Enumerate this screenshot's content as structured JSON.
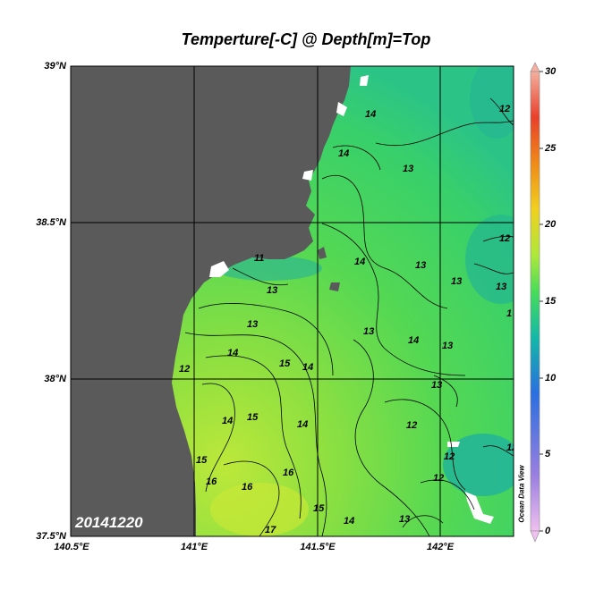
{
  "title": "Temperture[-C] @ Depth[m]=Top",
  "date_stamp": "20141220",
  "watermark": "Ocean Data View",
  "axes": {
    "lat_labels": [
      "39°N",
      "38.5°N",
      "38°N",
      "37.5°N"
    ],
    "lon_labels": [
      "140.5°E",
      "141°E",
      "141.5°E",
      "142°E"
    ]
  },
  "colorbar": {
    "min": 0,
    "max": 30,
    "ticks": [
      "0",
      "5",
      "10",
      "15",
      "20",
      "25",
      "30"
    ],
    "colors": [
      "#f0c0f0",
      "#9b7fe0",
      "#2a6fe0",
      "#13b8a8",
      "#48dc5a",
      "#aee83a",
      "#f0d020",
      "#f08a18",
      "#e8402a",
      "#f4b0a0"
    ]
  },
  "land_color": "#5a5a5a",
  "contours": [
    {
      "label": "14"
    },
    {
      "label": "14"
    },
    {
      "label": "13"
    },
    {
      "label": "12"
    },
    {
      "label": "11"
    },
    {
      "label": "14"
    },
    {
      "label": "13"
    },
    {
      "label": "13"
    },
    {
      "label": "13"
    },
    {
      "label": "12"
    },
    {
      "label": "14"
    },
    {
      "label": "15"
    },
    {
      "label": "14"
    },
    {
      "label": "13"
    },
    {
      "label": "14"
    },
    {
      "label": "13"
    },
    {
      "label": "13"
    },
    {
      "label": "12"
    },
    {
      "label": "13"
    },
    {
      "label": "12"
    },
    {
      "label": "15"
    },
    {
      "label": "14"
    },
    {
      "label": "14"
    },
    {
      "label": "15"
    },
    {
      "label": "16"
    },
    {
      "label": "16"
    },
    {
      "label": "16"
    },
    {
      "label": "15"
    },
    {
      "label": "17"
    },
    {
      "label": "14"
    },
    {
      "label": "13"
    },
    {
      "label": "12"
    },
    {
      "label": "12"
    },
    {
      "label": "13"
    },
    {
      "label": "12"
    },
    {
      "label": "1"
    }
  ]
}
